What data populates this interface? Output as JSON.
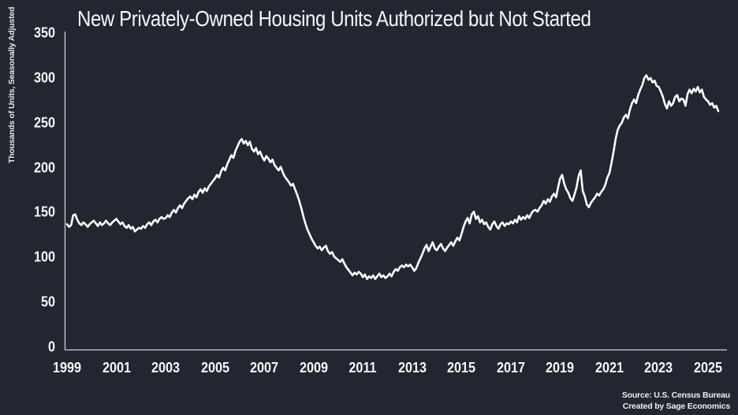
{
  "title": "New Privately-Owned Housing Units Authorized but Not Started",
  "y_axis_title": "Thousands of Units, Seasonally Adjusted",
  "source": {
    "line1": "Source: U.S. Census Bureau",
    "line2": "Created by Sage Economics"
  },
  "colors": {
    "background": "#212631",
    "line": "#ffffff",
    "axis": "#cdd1d6",
    "text": "#f5f6f7"
  },
  "chart_data": {
    "type": "line",
    "title": "New Privately-Owned Housing Units Authorized but Not Started",
    "xlabel": "",
    "ylabel": "Thousands of Units, Seasonally Adjusted",
    "ylim": [
      0,
      350
    ],
    "yticks": [
      0,
      50,
      100,
      150,
      200,
      250,
      300,
      350
    ],
    "xticks": [
      1999,
      2001,
      2003,
      2005,
      2007,
      2009,
      2011,
      2013,
      2015,
      2017,
      2019,
      2021,
      2023,
      2025
    ],
    "grid": false,
    "legend_position": "none",
    "x_start_year": 1999,
    "points_per_year": 12,
    "x_end_label": "mid-2025",
    "series": [
      {
        "name": "Housing Units Authorized but Not Started (thousands, SA)",
        "monthly_values": [
          137,
          134,
          136,
          147,
          148,
          142,
          138,
          136,
          139,
          137,
          134,
          137,
          139,
          141,
          138,
          135,
          139,
          136,
          138,
          141,
          138,
          136,
          139,
          141,
          143,
          140,
          137,
          139,
          135,
          133,
          136,
          132,
          134,
          129,
          131,
          133,
          132,
          135,
          133,
          137,
          139,
          136,
          140,
          142,
          139,
          143,
          145,
          143,
          144,
          147,
          145,
          150,
          153,
          150,
          155,
          158,
          155,
          160,
          163,
          166,
          168,
          165,
          170,
          167,
          173,
          176,
          172,
          177,
          174,
          179,
          182,
          185,
          188,
          192,
          189,
          196,
          200,
          197,
          204,
          209,
          214,
          211,
          219,
          224,
          229,
          232,
          227,
          230,
          225,
          229,
          221,
          218,
          222,
          215,
          218,
          212,
          208,
          213,
          210,
          206,
          209,
          203,
          200,
          197,
          201,
          195,
          190,
          187,
          184,
          180,
          182,
          176,
          170,
          163,
          155,
          146,
          138,
          131,
          126,
          121,
          117,
          113,
          110,
          112,
          108,
          111,
          113,
          107,
          104,
          106,
          101,
          99,
          97,
          95,
          98,
          93,
          89,
          86,
          83,
          80,
          83,
          81,
          84,
          82,
          78,
          81,
          76,
          79,
          77,
          80,
          76,
          79,
          82,
          78,
          80,
          77,
          79,
          82,
          79,
          84,
          87,
          85,
          89,
          91,
          89,
          92,
          90,
          92,
          89,
          85,
          88,
          94,
          99,
          104,
          110,
          114,
          107,
          112,
          117,
          110,
          108,
          112,
          115,
          110,
          107,
          111,
          114,
          117,
          113,
          118,
          122,
          119,
          126,
          134,
          140,
          144,
          138,
          148,
          151,
          143,
          146,
          139,
          142,
          137,
          139,
          134,
          131,
          137,
          140,
          135,
          132,
          137,
          139,
          135,
          138,
          137,
          140,
          138,
          142,
          139,
          146,
          142,
          145,
          143,
          147,
          144,
          149,
          152,
          153,
          151,
          155,
          158,
          163,
          160,
          165,
          162,
          168,
          171,
          167,
          178,
          188,
          192,
          182,
          176,
          172,
          166,
          163,
          170,
          178,
          191,
          197,
          174,
          168,
          159,
          156,
          161,
          164,
          167,
          171,
          169,
          173,
          176,
          181,
          189,
          194,
          205,
          218,
          232,
          242,
          247,
          250,
          256,
          259,
          255,
          265,
          272,
          276,
          272,
          281,
          287,
          292,
          300,
          303,
          298,
          300,
          295,
          297,
          291,
          290,
          285,
          279,
          271,
          266,
          274,
          269,
          272,
          279,
          281,
          274,
          277,
          276,
          269,
          282,
          287,
          283,
          288,
          285,
          290,
          284,
          287,
          279,
          276,
          274,
          270,
          272,
          267,
          269,
          263
        ]
      }
    ],
    "source": "U.S. Census Bureau",
    "created_by": "Sage Economics"
  }
}
